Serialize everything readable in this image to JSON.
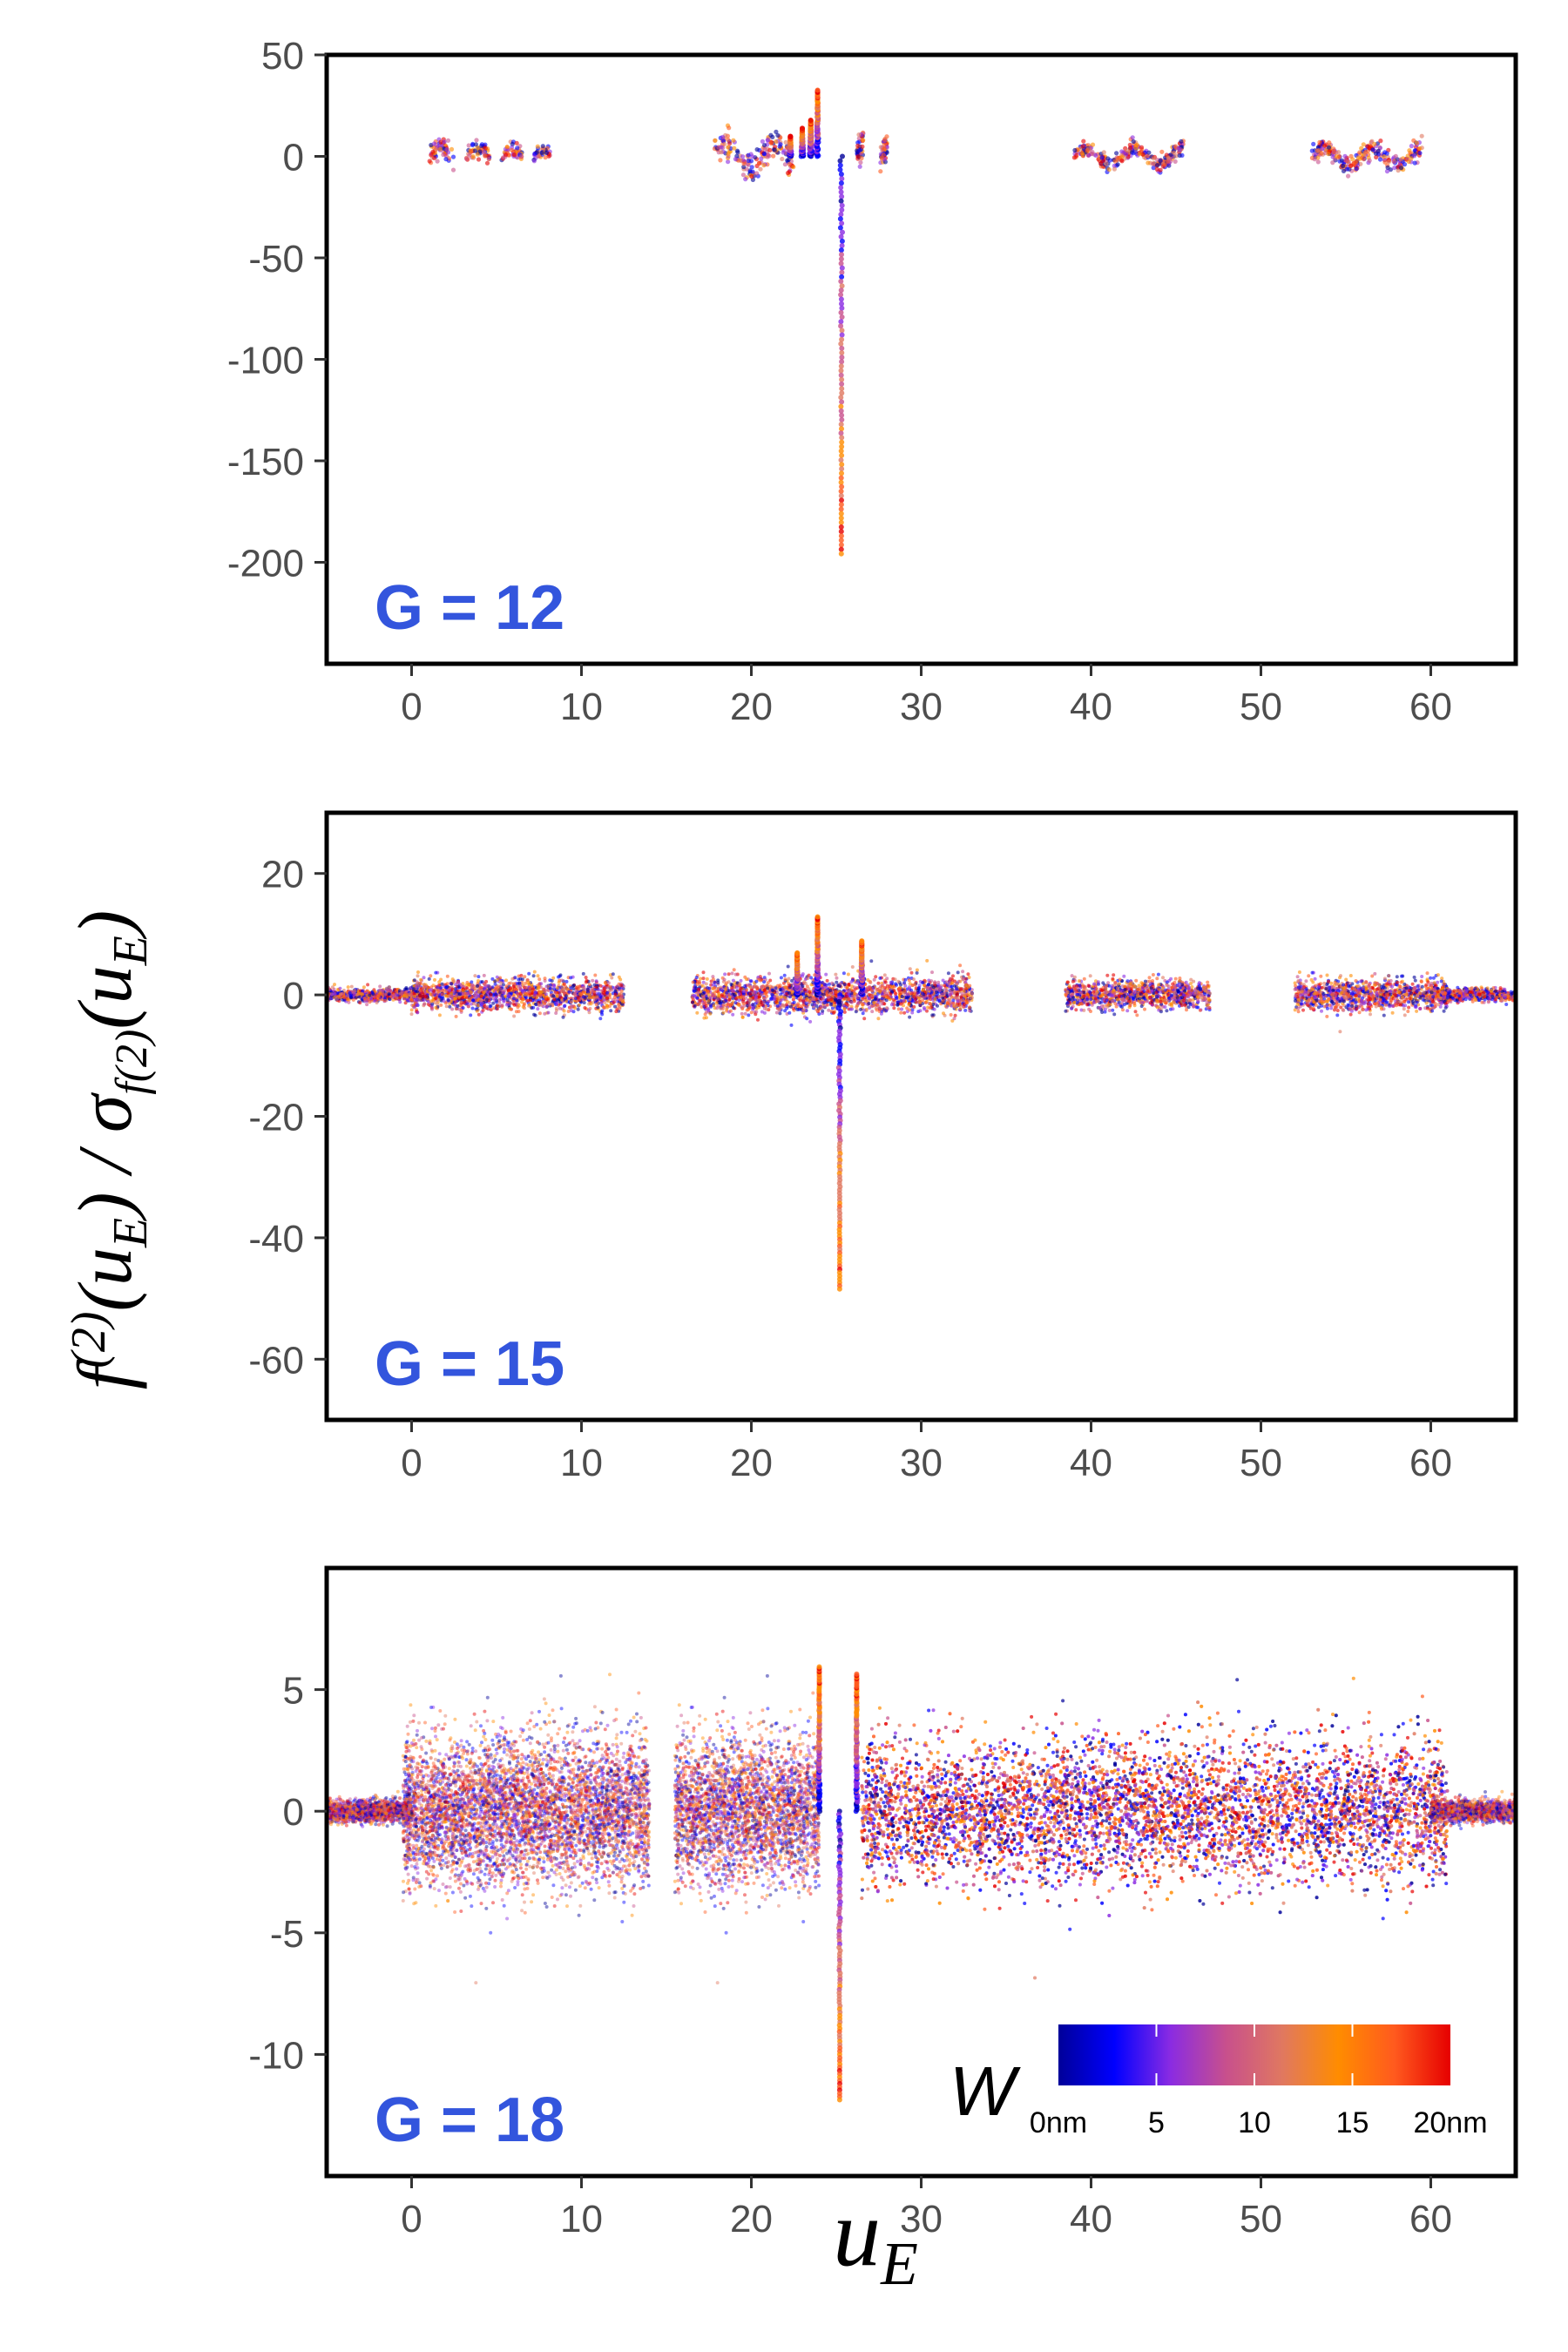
{
  "chart_data": [
    {
      "type": "scatter",
      "panel_label": "G = 12",
      "xlim": [
        -5,
        65
      ],
      "ylim": [
        -250,
        50
      ],
      "xticks": [
        0,
        10,
        20,
        30,
        40,
        50,
        60
      ],
      "yticks": [
        50,
        0,
        -50,
        -100,
        -150,
        -200
      ],
      "xtick_labels": [
        "0",
        "10",
        "20",
        "30",
        "40",
        "50",
        "60"
      ],
      "ytick_labels": [
        "50",
        "0",
        "-50",
        "-100",
        "-150",
        "-200"
      ],
      "clusters": [
        {
          "x": [
            1,
            2.5
          ],
          "amp": 8
        },
        {
          "x": [
            3.2,
            4.6
          ],
          "amp": 6
        },
        {
          "x": [
            5.3,
            6.5
          ],
          "amp": 5
        },
        {
          "x": [
            7.2,
            8.2
          ],
          "amp": 4
        },
        {
          "x": [
            17.8,
            22.5
          ],
          "amp": 10
        },
        {
          "x": [
            26.2,
            26.6
          ],
          "amp": 12
        },
        {
          "x": [
            27.6,
            28
          ],
          "amp": 10
        },
        {
          "x": [
            39,
            45.5
          ],
          "amp": 6
        },
        {
          "x": [
            53,
            59.5
          ],
          "amp": 7
        }
      ],
      "spikes": [
        {
          "x": 23.9,
          "y": 33
        },
        {
          "x": 23.5,
          "y": 18
        },
        {
          "x": 23.0,
          "y": 14
        },
        {
          "x": 22.3,
          "y": 10
        },
        {
          "x": 25.3,
          "y": -198
        }
      ],
      "grid": false
    },
    {
      "type": "scatter",
      "panel_label": "G = 15",
      "xlim": [
        -5,
        65
      ],
      "ylim": [
        -70,
        30
      ],
      "xticks": [
        0,
        10,
        20,
        30,
        40,
        50,
        60
      ],
      "yticks": [
        20,
        0,
        -20,
        -40,
        -60
      ],
      "xtick_labels": [
        "0",
        "10",
        "20",
        "30",
        "40",
        "50",
        "60"
      ],
      "ytick_labels": [
        "20",
        "0",
        "-20",
        "-40",
        "-60"
      ],
      "clusters": [
        {
          "x": [
            -5,
            1
          ],
          "amp": 1.2
        },
        {
          "x": [
            0,
            12.5
          ],
          "amp": 3
        },
        {
          "x": [
            16.5,
            33
          ],
          "amp": 3.5
        },
        {
          "x": [
            38.5,
            47
          ],
          "amp": 2.8
        },
        {
          "x": [
            52,
            61
          ],
          "amp": 3
        },
        {
          "x": [
            60,
            65
          ],
          "amp": 1.2
        }
      ],
      "spikes": [
        {
          "x": 23.9,
          "y": 13
        },
        {
          "x": 26.5,
          "y": 9
        },
        {
          "x": 22.7,
          "y": 7
        },
        {
          "x": 25.2,
          "y": -49
        }
      ],
      "grid": false
    },
    {
      "type": "scatter",
      "panel_label": "G = 18",
      "xlim": [
        -5,
        65
      ],
      "ylim": [
        -15,
        10
      ],
      "xticks": [
        0,
        10,
        20,
        30,
        40,
        50,
        60
      ],
      "yticks": [
        5,
        0,
        -5,
        -10
      ],
      "xtick_labels": [
        "0",
        "10",
        "20",
        "30",
        "40",
        "50",
        "60"
      ],
      "ytick_labels": [
        "5",
        "0",
        "-5",
        "-10"
      ],
      "clusters": [
        {
          "x": [
            -5,
            0
          ],
          "amp": 0.5
        },
        {
          "x": [
            -0.5,
            14
          ],
          "amp": 3.5
        },
        {
          "x": [
            15.5,
            24
          ],
          "amp": 3.5
        },
        {
          "x": [
            26.5,
            61
          ],
          "amp": 3.4
        },
        {
          "x": [
            60,
            65
          ],
          "amp": 0.5
        }
      ],
      "spikes": [
        {
          "x": 24.0,
          "y": 6
        },
        {
          "x": 26.2,
          "y": 5.7
        },
        {
          "x": 25.2,
          "y": -12
        }
      ],
      "grid": false
    }
  ],
  "axes": {
    "xlabel": "u",
    "xlabel_sub": "E",
    "ylabel_parts": [
      "f",
      "(2)",
      "(u",
      "E",
      ") / σ",
      "f(2)",
      "(u",
      "E",
      ")"
    ]
  },
  "colorbar": {
    "title": "W",
    "tick_labels": [
      "0nm",
      "5",
      "10",
      "15",
      "20nm"
    ],
    "tick_values": [
      0,
      5,
      10,
      15,
      20
    ],
    "range": [
      0,
      20
    ],
    "colors": [
      "#000099",
      "#0000ff",
      "#8a2be2",
      "#c8508c",
      "#e07860",
      "#ff8c00",
      "#ff5a1e",
      "#e60000"
    ]
  },
  "panel_label_color": "#3355dd"
}
